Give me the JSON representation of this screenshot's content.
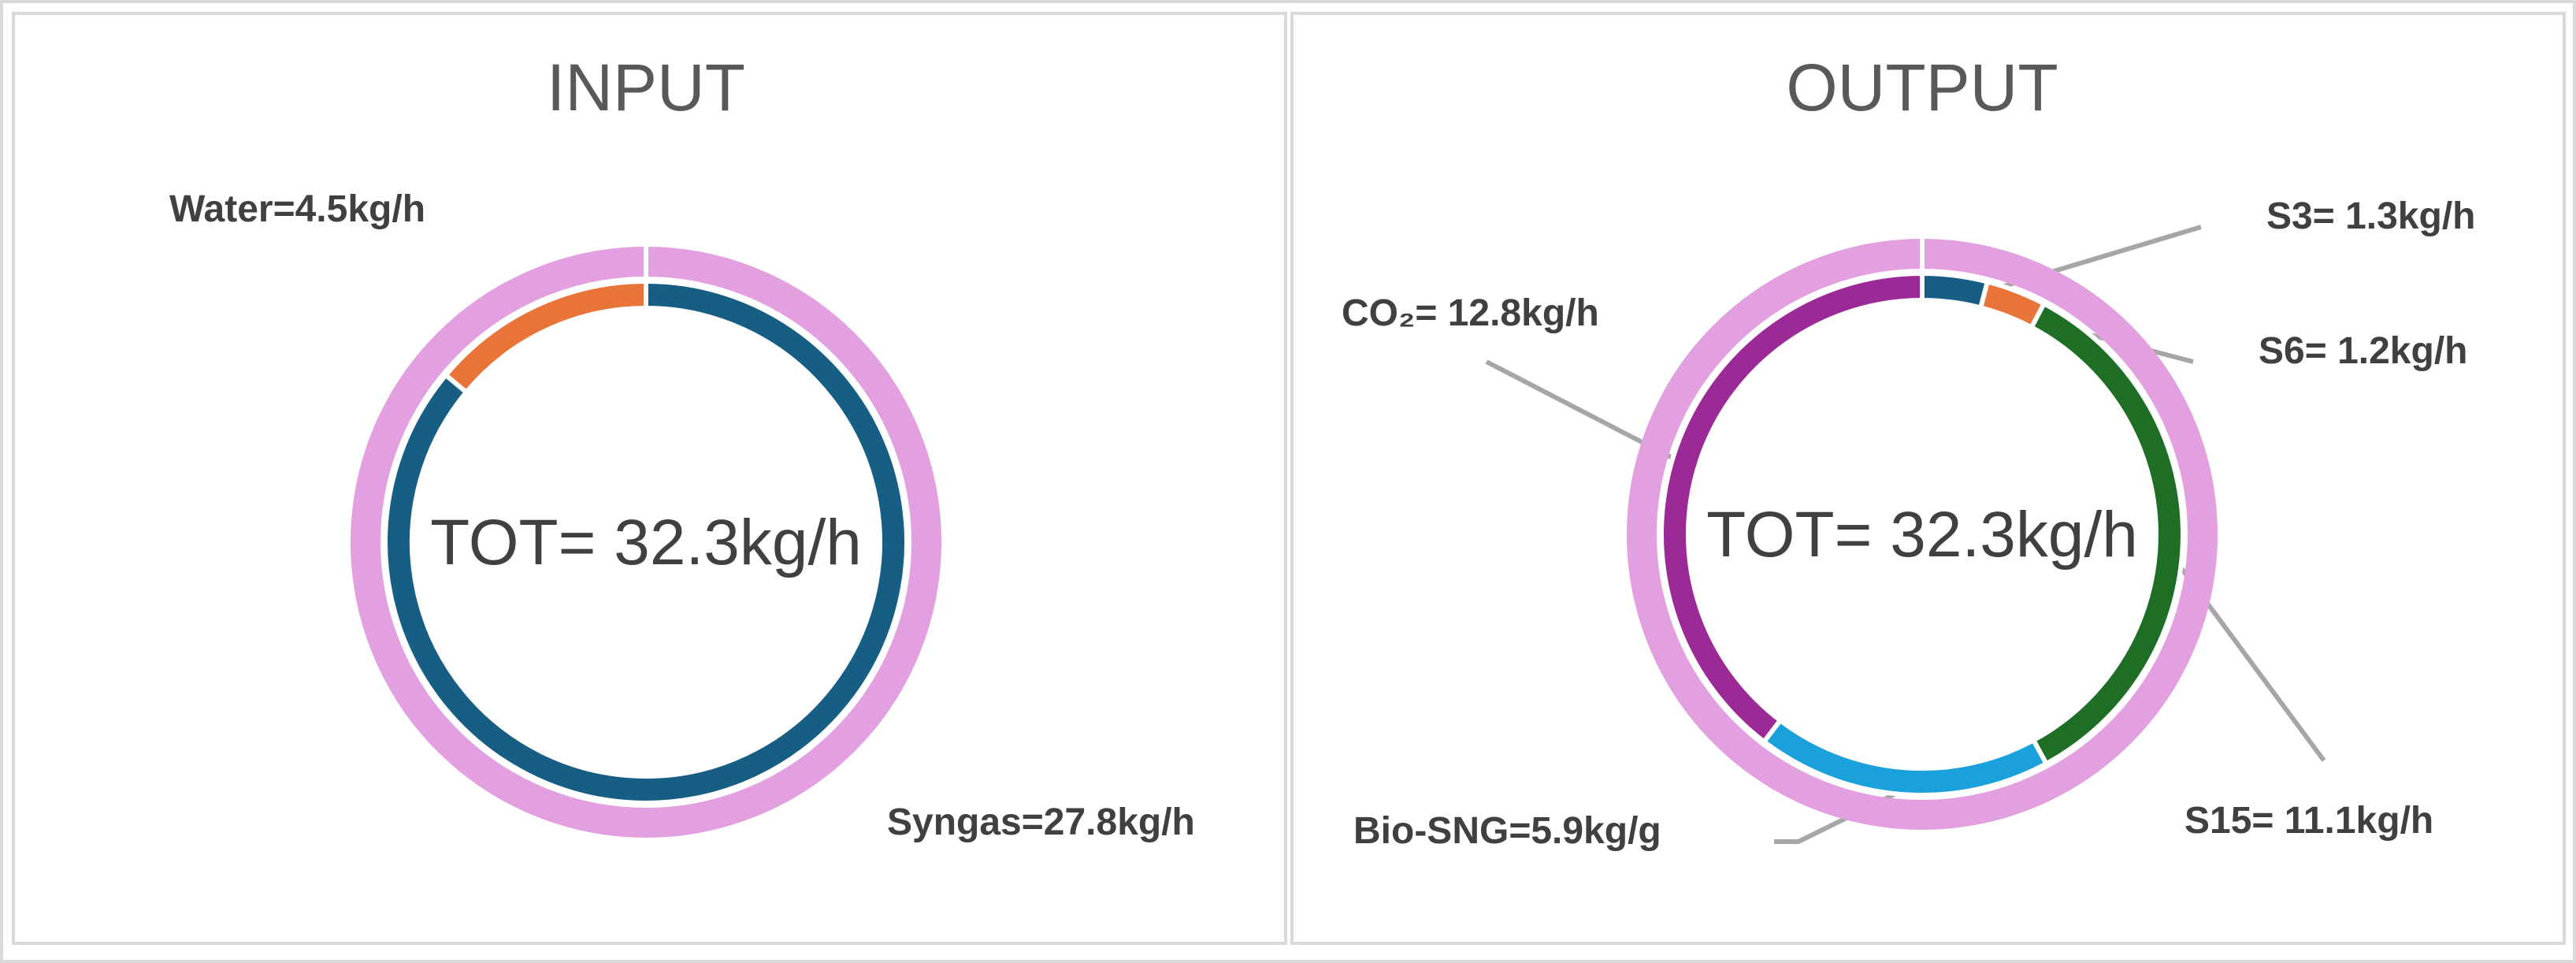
{
  "chart_data": [
    {
      "type": "doughnut",
      "title": "INPUT",
      "total": 32.3,
      "total_label": "TOT= 32.3kg/h",
      "total_color": "#e3a0e0",
      "values": [
        27.8,
        4.5
      ],
      "value_labels": [
        "Syngas=27.8kg/h",
        "Water=4.5kg/h"
      ],
      "colors": [
        "#165e83",
        "#e9743a"
      ]
    },
    {
      "type": "doughnut",
      "title": "OUTPUT",
      "total": 32.3,
      "total_label": "TOT= 32.3kg/h",
      "total_color": "#e3a0e0",
      "values": [
        1.3,
        1.2,
        11.1,
        5.9,
        12.8
      ],
      "value_labels": [
        "S3= 1.3kg/h",
        "S6= 1.2kg/h",
        "S15= 11.1kg/h",
        "Bio-SNG=5.9kg/g",
        "CO₂= 12.8kg/h"
      ],
      "colors": [
        "#165e83",
        "#e9743a",
        "#1e6e25",
        "#1aa1dc",
        "#9c2a96"
      ]
    }
  ]
}
